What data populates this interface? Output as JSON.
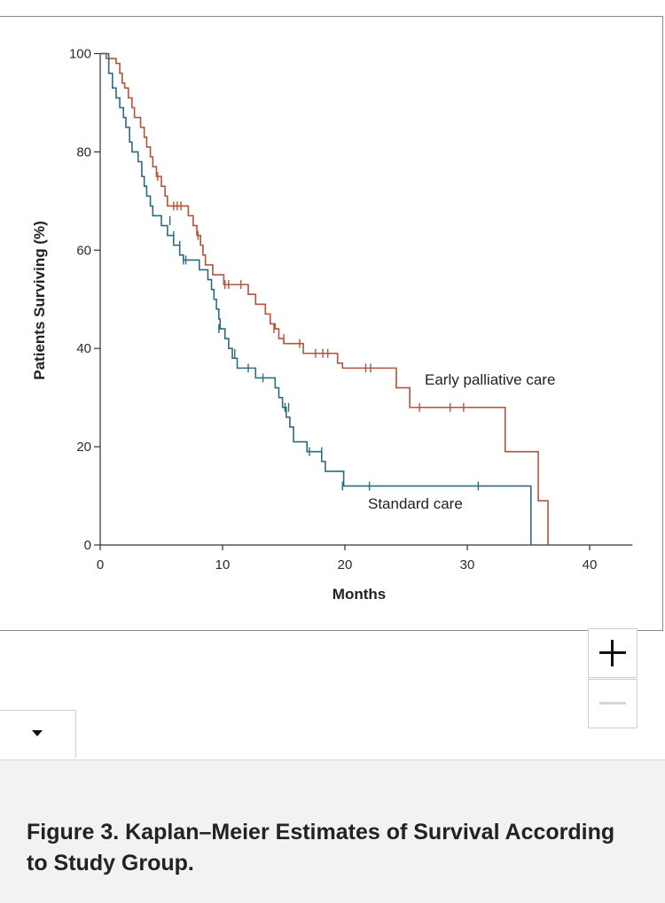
{
  "chart_data": {
    "type": "line",
    "subtype": "kaplan-meier-step",
    "xlabel": "Months",
    "ylabel": "Patients Surviving (%)",
    "xlim": [
      0,
      43.5
    ],
    "ylim": [
      0,
      100
    ],
    "xticks": [
      0,
      10,
      20,
      30,
      40
    ],
    "yticks": [
      0,
      20,
      40,
      60,
      80,
      100
    ],
    "grid": false,
    "series": [
      {
        "name": "Early palliative care",
        "color": "#b5533a",
        "steps": [
          [
            0,
            100
          ],
          [
            0.5,
            99
          ],
          [
            1.3,
            98
          ],
          [
            1.6,
            96
          ],
          [
            1.8,
            94
          ],
          [
            2.0,
            93
          ],
          [
            2.3,
            91
          ],
          [
            2.6,
            89
          ],
          [
            2.8,
            87
          ],
          [
            3.3,
            85
          ],
          [
            3.6,
            83
          ],
          [
            3.8,
            81
          ],
          [
            4.1,
            79
          ],
          [
            4.3,
            77
          ],
          [
            4.6,
            75
          ],
          [
            5.0,
            73
          ],
          [
            5.3,
            71
          ],
          [
            5.5,
            69
          ],
          [
            7.2,
            67
          ],
          [
            7.6,
            65
          ],
          [
            7.9,
            63
          ],
          [
            8.2,
            61
          ],
          [
            8.4,
            59
          ],
          [
            8.6,
            57
          ],
          [
            9.2,
            55
          ],
          [
            10.1,
            53
          ],
          [
            12.1,
            51
          ],
          [
            12.7,
            49
          ],
          [
            13.5,
            47
          ],
          [
            13.9,
            45
          ],
          [
            14.3,
            44
          ],
          [
            14.6,
            42
          ],
          [
            15.0,
            41
          ],
          [
            16.6,
            39
          ],
          [
            19.4,
            37
          ],
          [
            19.8,
            36
          ],
          [
            24.2,
            32
          ],
          [
            25.3,
            28
          ],
          [
            33.1,
            19
          ],
          [
            35.8,
            9
          ],
          [
            36.6,
            0
          ]
        ],
        "censored": [
          [
            4.7,
            75
          ],
          [
            6.0,
            69
          ],
          [
            6.3,
            69
          ],
          [
            6.6,
            69
          ],
          [
            8.0,
            63
          ],
          [
            10.2,
            53
          ],
          [
            10.5,
            53
          ],
          [
            11.5,
            53
          ],
          [
            14.2,
            44
          ],
          [
            15.0,
            42
          ],
          [
            16.3,
            41
          ],
          [
            17.6,
            39
          ],
          [
            18.2,
            39
          ],
          [
            18.6,
            39
          ],
          [
            21.7,
            36
          ],
          [
            22.1,
            36
          ],
          [
            26.1,
            28
          ],
          [
            28.6,
            28
          ],
          [
            29.7,
            28
          ]
        ],
        "label": "Early palliative care"
      },
      {
        "name": "Standard care",
        "color": "#2e6b80",
        "steps": [
          [
            0,
            100
          ],
          [
            0.7,
            96
          ],
          [
            1.0,
            93
          ],
          [
            1.3,
            91
          ],
          [
            1.6,
            89
          ],
          [
            1.9,
            87
          ],
          [
            2.1,
            85
          ],
          [
            2.4,
            82
          ],
          [
            2.6,
            80
          ],
          [
            3.1,
            78
          ],
          [
            3.4,
            75
          ],
          [
            3.6,
            73
          ],
          [
            3.8,
            71
          ],
          [
            4.1,
            69
          ],
          [
            4.3,
            67
          ],
          [
            5.0,
            65
          ],
          [
            5.5,
            63
          ],
          [
            6.0,
            61
          ],
          [
            6.5,
            59
          ],
          [
            6.8,
            58
          ],
          [
            8.1,
            56
          ],
          [
            8.8,
            54
          ],
          [
            9.1,
            52
          ],
          [
            9.3,
            50
          ],
          [
            9.5,
            48
          ],
          [
            9.7,
            46
          ],
          [
            9.8,
            44
          ],
          [
            10.2,
            42
          ],
          [
            10.5,
            40
          ],
          [
            10.8,
            38
          ],
          [
            11.2,
            36
          ],
          [
            12.7,
            34
          ],
          [
            14.3,
            32
          ],
          [
            14.6,
            30
          ],
          [
            14.9,
            28
          ],
          [
            15.2,
            26
          ],
          [
            15.5,
            24
          ],
          [
            15.8,
            21
          ],
          [
            16.9,
            19
          ],
          [
            18.1,
            17
          ],
          [
            18.4,
            15
          ],
          [
            19.9,
            12
          ],
          [
            35.2,
            0
          ]
        ],
        "censored": [
          [
            5.7,
            66
          ],
          [
            6.0,
            63
          ],
          [
            6.5,
            61
          ],
          [
            6.8,
            58
          ],
          [
            7.0,
            58
          ],
          [
            9.7,
            44
          ],
          [
            11.0,
            39
          ],
          [
            12.1,
            36
          ],
          [
            13.3,
            34
          ],
          [
            15.1,
            28
          ],
          [
            15.4,
            28
          ],
          [
            17.1,
            19
          ],
          [
            18.1,
            19
          ],
          [
            19.8,
            12
          ],
          [
            22.0,
            12
          ],
          [
            30.9,
            12
          ]
        ],
        "label": "Standard care"
      }
    ]
  },
  "controls": {
    "zoom_in_label": "zoom in",
    "zoom_out_label": "zoom out"
  },
  "caption": "Figure 3. Kaplan–Meier Estimates of Survival According to Study Group."
}
